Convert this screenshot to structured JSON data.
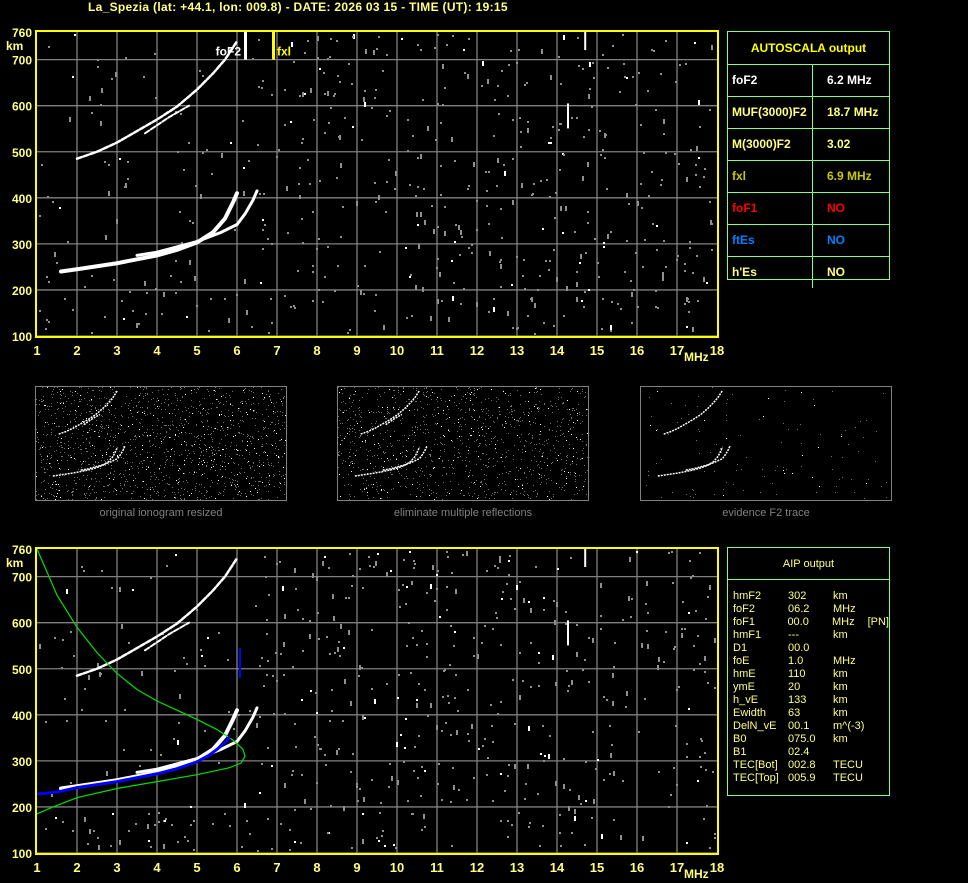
{
  "header": {
    "title": "La_Spezia (lat: +44.1, lon: 009.8) - DATE: 2026 03 15 - TIME (UT): 19:15"
  },
  "colors": {
    "axis": "#ffff00",
    "text": "#ffff80",
    "grid": "#808080",
    "table_border": "#80ff80",
    "trace": "#ffffff",
    "profile_model": "#00e000",
    "profile_true": "#0000ff",
    "foF1": "#ff0000",
    "ftEs": "#0080ff",
    "fxl": "#c8c800"
  },
  "chart_data": [
    {
      "type": "scatter",
      "name": "ionogram-autoscala",
      "xlabel": "MHz",
      "ylabel": "km",
      "xlim": [
        1,
        18
      ],
      "ylim": [
        100,
        760
      ],
      "xticks": [
        "1",
        "2",
        "3",
        "4",
        "5",
        "6",
        "7",
        "8",
        "9",
        "10",
        "11",
        "12",
        "13",
        "14",
        "15",
        "16",
        "17",
        "18"
      ],
      "yticks": [
        "760",
        "700",
        "600",
        "500",
        "400",
        "300",
        "200",
        "100"
      ],
      "grid": true,
      "markers": [
        {
          "label": "foF2",
          "x": 6.2
        },
        {
          "label": "fxl",
          "x": 6.9
        }
      ],
      "traces": {
        "o_trace": [
          [
            1.6,
            240
          ],
          [
            2,
            245
          ],
          [
            3,
            258
          ],
          [
            4,
            275
          ],
          [
            4.5,
            287
          ],
          [
            5,
            303
          ],
          [
            5.4,
            325
          ],
          [
            5.7,
            355
          ],
          [
            5.9,
            390
          ],
          [
            6.0,
            410
          ]
        ],
        "x_trace": [
          [
            3.5,
            275
          ],
          [
            4,
            282
          ],
          [
            5,
            305
          ],
          [
            5.6,
            325
          ],
          [
            6,
            342
          ],
          [
            6.2,
            365
          ],
          [
            6.4,
            395
          ],
          [
            6.5,
            415
          ]
        ],
        "second_hop": [
          [
            2,
            485
          ],
          [
            2.5,
            500
          ],
          [
            3,
            520
          ],
          [
            3.5,
            545
          ],
          [
            4,
            570
          ],
          [
            4.5,
            598
          ],
          [
            5,
            635
          ],
          [
            5.4,
            670
          ],
          [
            5.7,
            700
          ],
          [
            6.0,
            740
          ]
        ],
        "second_hop_x": [
          [
            3.7,
            540
          ],
          [
            4.3,
            575
          ],
          [
            4.8,
            600
          ]
        ]
      }
    },
    {
      "type": "line",
      "name": "ionogram-aip",
      "xlabel": "MHz",
      "ylabel": "km",
      "xlim": [
        1,
        18
      ],
      "ylim": [
        100,
        760
      ],
      "xticks": [
        "1",
        "2",
        "3",
        "4",
        "5",
        "6",
        "7",
        "8",
        "9",
        "10",
        "11",
        "12",
        "13",
        "14",
        "15",
        "16",
        "17",
        "18"
      ],
      "yticks": [
        "760",
        "700",
        "600",
        "500",
        "400",
        "300",
        "200",
        "100"
      ],
      "grid": true,
      "profile_model": [
        [
          1,
          760
        ],
        [
          1.5,
          660
        ],
        [
          2,
          590
        ],
        [
          2.5,
          535
        ],
        [
          3,
          490
        ],
        [
          3.5,
          455
        ],
        [
          4,
          430
        ],
        [
          4.5,
          410
        ],
        [
          5,
          390
        ],
        [
          5.5,
          368
        ],
        [
          5.9,
          345
        ],
        [
          6.15,
          325
        ],
        [
          6.2,
          310
        ],
        [
          6.1,
          295
        ],
        [
          5.8,
          285
        ],
        [
          5,
          270
        ],
        [
          4,
          255
        ],
        [
          3,
          240
        ],
        [
          2,
          220
        ],
        [
          1.4,
          200
        ],
        [
          1,
          185
        ]
      ],
      "profile_true": [
        [
          1,
          228
        ],
        [
          1.5,
          232
        ],
        [
          2,
          242
        ],
        [
          3,
          255
        ],
        [
          4,
          272
        ],
        [
          4.5,
          283
        ],
        [
          5,
          298
        ],
        [
          5.3,
          312
        ],
        [
          5.5,
          325
        ],
        [
          5.7,
          340
        ],
        [
          5.8,
          350
        ]
      ]
    }
  ],
  "autoscala": {
    "title": "AUTOSCALA output",
    "rows": [
      {
        "key": "foF2",
        "value": "6.2 MHz",
        "color": "#ffffff"
      },
      {
        "key": "MUF(3000)F2",
        "value": "18.7 MHz",
        "color": "#ffff80"
      },
      {
        "key": "M(3000)F2",
        "value": "3.02",
        "color": "#ffff80"
      },
      {
        "key": "fxl",
        "value": "6.9 MHz",
        "color": "#c8c800"
      },
      {
        "key": "foF1",
        "value": "NO",
        "color": "#ff0000"
      },
      {
        "key": "ftEs",
        "value": "NO",
        "color": "#0080ff"
      },
      {
        "key": "h'Es",
        "value": "NO",
        "color": "#ffff80"
      }
    ]
  },
  "aip": {
    "title": "AIP output",
    "rows": [
      [
        "hmF2",
        "302",
        "km",
        ""
      ],
      [
        "foF2",
        "06.2",
        "MHz",
        ""
      ],
      [
        "foF1",
        "00.0",
        "MHz",
        "[PN]"
      ],
      [
        "hmF1",
        "---",
        "km",
        ""
      ],
      [
        "D1",
        "00.0",
        "",
        ""
      ],
      [
        "foE",
        "1.0",
        "MHz",
        ""
      ],
      [
        "hmE",
        "110",
        "km",
        ""
      ],
      [
        "ymE",
        "20",
        "km",
        ""
      ],
      [
        "h_vE",
        "133",
        "km",
        ""
      ],
      [
        "Ewidth",
        "63",
        "km",
        ""
      ],
      [
        "DelN_vE",
        "00.1",
        "m^(-3)",
        ""
      ],
      [
        "B0",
        "075.0",
        "km",
        ""
      ],
      [
        "B1",
        "02.4",
        "",
        ""
      ],
      [
        "TEC[Bot]",
        "002.8",
        "TECU",
        ""
      ],
      [
        "TEC[Top]",
        "005.9",
        "TECU",
        ""
      ]
    ]
  },
  "thumbnails": [
    {
      "caption": "original ionogram resized"
    },
    {
      "caption": "eliminate multiple reflections"
    },
    {
      "caption": "evidence F2 trace"
    }
  ]
}
